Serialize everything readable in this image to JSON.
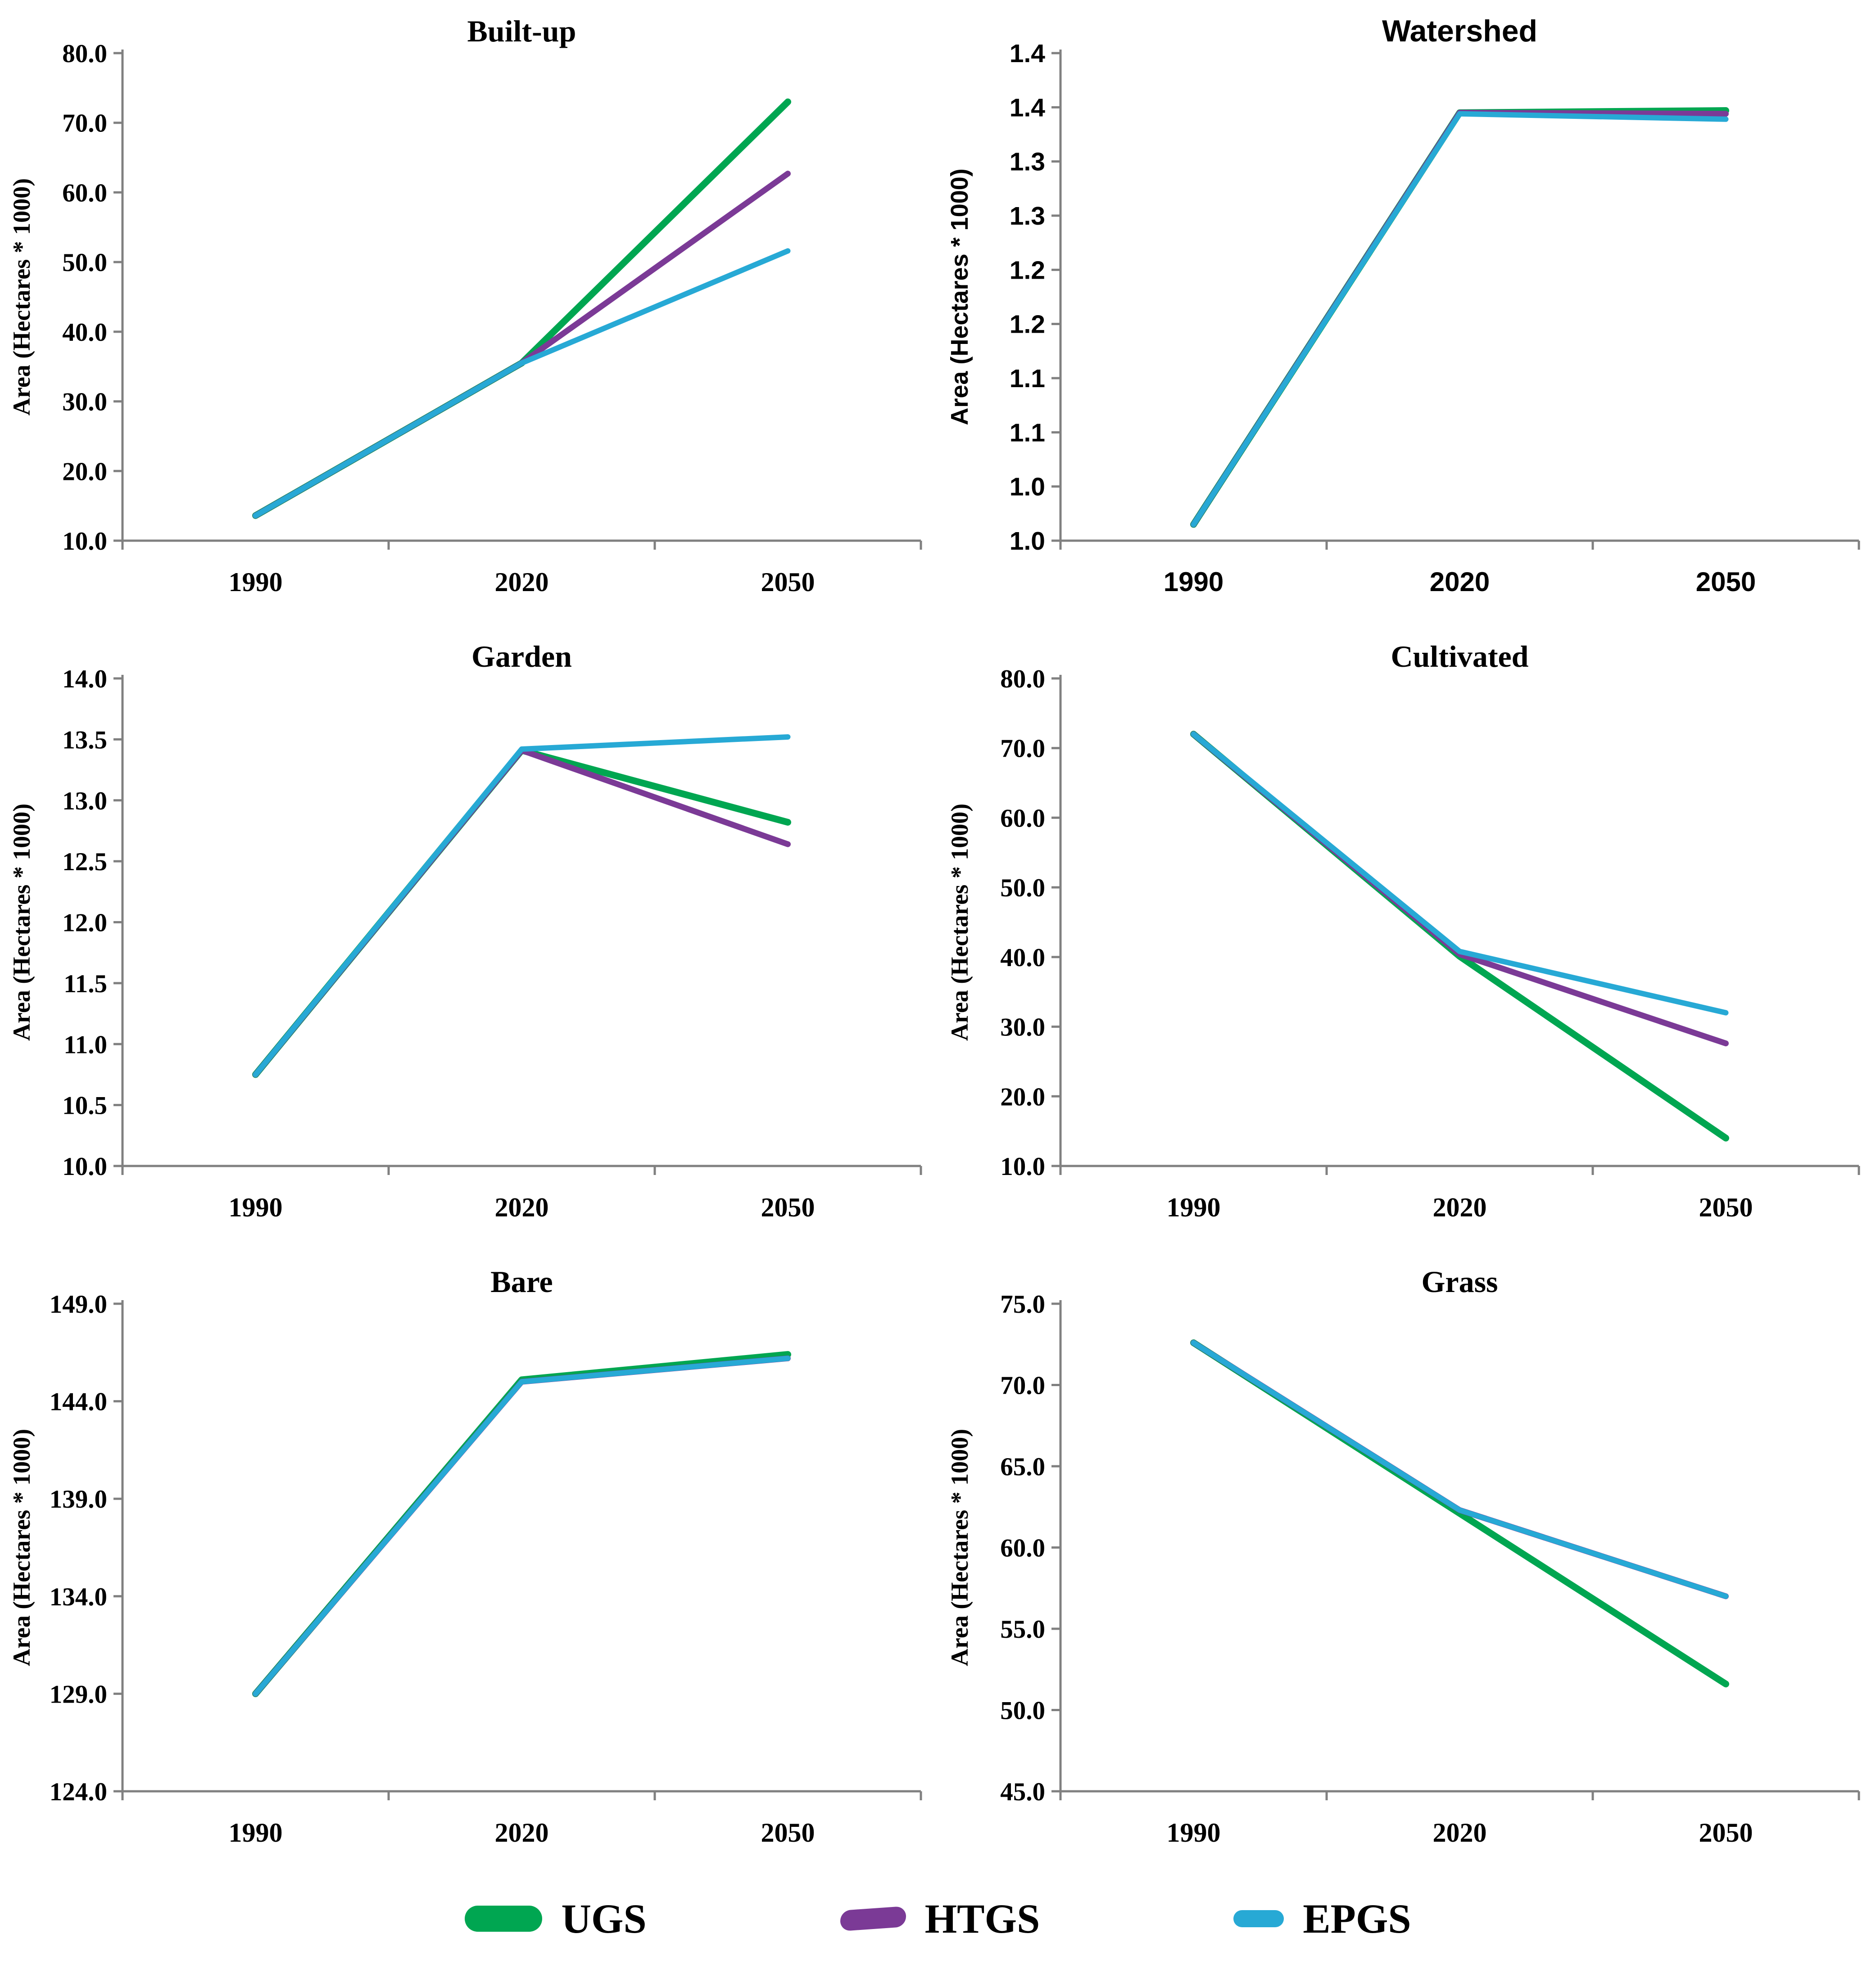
{
  "figure": {
    "x_axis_years": [
      "1990",
      "2020",
      "2050"
    ],
    "y_axis_title": "Area (Hectares * 1000)"
  },
  "legend": {
    "items": [
      {
        "label": "UGS",
        "color": "#00A651"
      },
      {
        "label": "HTGS",
        "color": "#7B3A96"
      },
      {
        "label": "EPGS",
        "color": "#27A9D5"
      }
    ]
  },
  "chart_data": [
    {
      "type": "line",
      "title": "Built-up",
      "font_style": "serif",
      "xlabel": "",
      "ylabel": "Area (Hectares * 1000)",
      "categories": [
        "1990",
        "2020",
        "2050"
      ],
      "ylim": [
        10.0,
        80.0
      ],
      "ytick_labels": [
        "10.0",
        "20.0",
        "30.0",
        "40.0",
        "50.0",
        "60.0",
        "70.0",
        "80.0"
      ],
      "grid": false,
      "series": [
        {
          "name": "UGS",
          "color": "#00A651",
          "values": [
            13.6,
            35.5,
            73.0
          ]
        },
        {
          "name": "HTGS",
          "color": "#7B3A96",
          "values": [
            13.6,
            35.5,
            62.7
          ]
        },
        {
          "name": "EPGS",
          "color": "#27A9D5",
          "values": [
            13.6,
            35.5,
            51.6
          ]
        }
      ]
    },
    {
      "type": "line",
      "title": "Watershed",
      "font_style": "sans",
      "xlabel": "",
      "ylabel": "Area (Hectares * 1000)",
      "categories": [
        "1990",
        "2020",
        "2050"
      ],
      "ylim": [
        0.95,
        1.4
      ],
      "ytick_labels": [
        "1.0",
        "1.0",
        "1.1",
        "1.1",
        "1.2",
        "1.2",
        "1.3",
        "1.3",
        "1.4",
        "1.4"
      ],
      "grid": false,
      "series": [
        {
          "name": "UGS",
          "color": "#00A651",
          "values": [
            0.965,
            1.345,
            1.347
          ]
        },
        {
          "name": "HTGS",
          "color": "#7B3A96",
          "values": [
            0.965,
            1.345,
            1.344
          ]
        },
        {
          "name": "EPGS",
          "color": "#27A9D5",
          "values": [
            0.965,
            1.344,
            1.339
          ]
        }
      ]
    },
    {
      "type": "line",
      "title": "Garden",
      "font_style": "serif",
      "xlabel": "",
      "ylabel": "Area (Hectares * 1000)",
      "categories": [
        "1990",
        "2020",
        "2050"
      ],
      "ylim": [
        10.0,
        14.0
      ],
      "ytick_labels": [
        "10.0",
        "10.5",
        "11.0",
        "11.5",
        "12.0",
        "12.5",
        "13.0",
        "13.5",
        "14.0"
      ],
      "grid": false,
      "series": [
        {
          "name": "UGS",
          "color": "#00A651",
          "values": [
            10.75,
            13.41,
            12.82
          ]
        },
        {
          "name": "HTGS",
          "color": "#7B3A96",
          "values": [
            10.75,
            13.41,
            12.64
          ]
        },
        {
          "name": "EPGS",
          "color": "#27A9D5",
          "values": [
            10.75,
            13.42,
            13.52
          ]
        }
      ]
    },
    {
      "type": "line",
      "title": "Cultivated",
      "font_style": "serif",
      "xlabel": "",
      "ylabel": "Area (Hectares * 1000)",
      "categories": [
        "1990",
        "2020",
        "2050"
      ],
      "ylim": [
        10.0,
        80.0
      ],
      "ytick_labels": [
        "10.0",
        "20.0",
        "30.0",
        "40.0",
        "50.0",
        "60.0",
        "70.0",
        "80.0"
      ],
      "grid": false,
      "series": [
        {
          "name": "UGS",
          "color": "#00A651",
          "values": [
            72.0,
            40.1,
            14.0
          ]
        },
        {
          "name": "HTGS",
          "color": "#7B3A96",
          "values": [
            72.0,
            40.4,
            27.6
          ]
        },
        {
          "name": "EPGS",
          "color": "#27A9D5",
          "values": [
            72.0,
            40.8,
            32.0
          ]
        }
      ]
    },
    {
      "type": "line",
      "title": "Bare",
      "font_style": "serif",
      "xlabel": "",
      "ylabel": "Area (Hectares * 1000)",
      "categories": [
        "1990",
        "2020",
        "2050"
      ],
      "ylim": [
        124.0,
        149.0
      ],
      "ytick_labels": [
        "124.0",
        "129.0",
        "134.0",
        "139.0",
        "144.0",
        "149.0"
      ],
      "grid": false,
      "series": [
        {
          "name": "UGS",
          "color": "#00A651",
          "values": [
            129.0,
            145.1,
            146.4
          ]
        },
        {
          "name": "HTGS",
          "color": "#7B3A96",
          "values": [
            129.0,
            145.0,
            146.2
          ]
        },
        {
          "name": "EPGS",
          "color": "#27A9D5",
          "values": [
            129.0,
            145.0,
            146.2
          ]
        }
      ]
    },
    {
      "type": "line",
      "title": "Grass",
      "font_style": "serif",
      "xlabel": "",
      "ylabel": "Area (Hectares * 1000)",
      "categories": [
        "1990",
        "2020",
        "2050"
      ],
      "ylim": [
        45.0,
        75.0
      ],
      "ytick_labels": [
        "45.0",
        "50.0",
        "55.0",
        "60.0",
        "65.0",
        "70.0",
        "75.0"
      ],
      "grid": false,
      "series": [
        {
          "name": "UGS",
          "color": "#00A651",
          "values": [
            72.6,
            62.1,
            51.6
          ]
        },
        {
          "name": "HTGS",
          "color": "#7B3A96",
          "values": [
            72.6,
            62.3,
            57.0
          ]
        },
        {
          "name": "EPGS",
          "color": "#27A9D5",
          "values": [
            72.6,
            62.3,
            57.0
          ]
        }
      ]
    }
  ]
}
